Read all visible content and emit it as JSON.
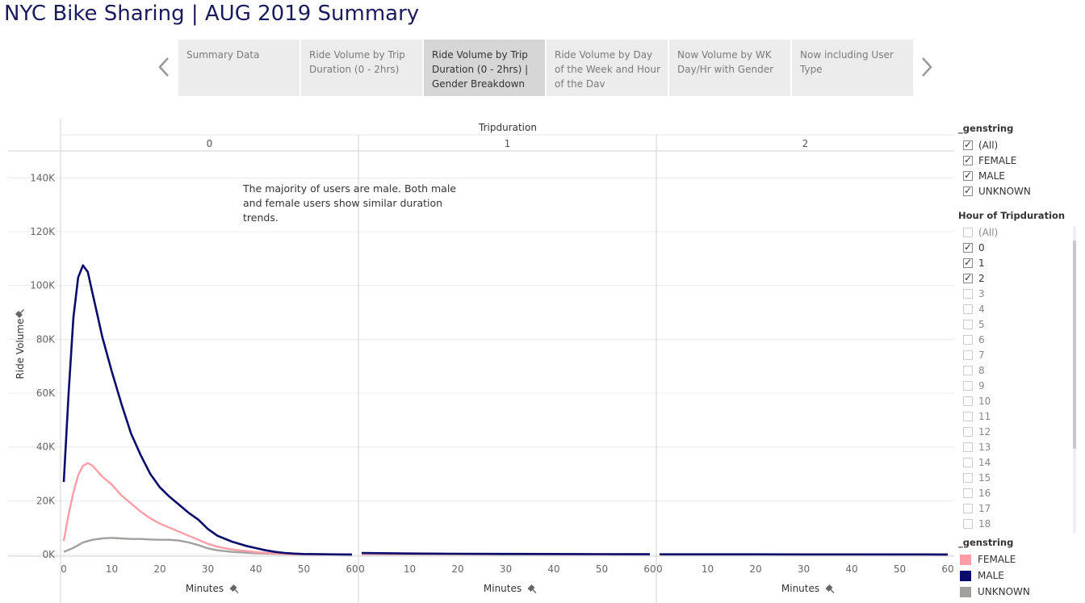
{
  "title": "NYC Bike Sharing | AUG 2019 Summary",
  "tabs": [
    {
      "label": "Summary Data",
      "active": false
    },
    {
      "label": "Ride Volume by Trip Duration (0 - 2hrs)",
      "active": false
    },
    {
      "label": "Ride Volume by Trip Duration (0 - 2hrs) | Gender Breakdown",
      "active": true
    },
    {
      "label": "Ride Volume by Day of the Week and Hour of the Dav",
      "active": false
    },
    {
      "label": "Now Volume by WK Day/Hr with Gender",
      "active": false
    },
    {
      "label": "Now including User Type",
      "active": false
    }
  ],
  "icons": {
    "prev": "chevron-left-icon",
    "next": "chevron-right-icon",
    "pin": "pin-icon"
  },
  "annotation": "The majority of users are male.  Both male and female users show similar duration trends.",
  "filters": {
    "genstring": {
      "title": "_genstring",
      "items": [
        {
          "label": "(All)",
          "checked": true
        },
        {
          "label": "FEMALE",
          "checked": true
        },
        {
          "label": "MALE",
          "checked": true
        },
        {
          "label": "UNKNOWN",
          "checked": true
        }
      ]
    },
    "hour": {
      "title": "Hour of Tripduration",
      "items": [
        {
          "label": "(All)",
          "checked": false
        },
        {
          "label": "0",
          "checked": true
        },
        {
          "label": "1",
          "checked": true
        },
        {
          "label": "2",
          "checked": true
        },
        {
          "label": "3",
          "checked": false
        },
        {
          "label": "4",
          "checked": false
        },
        {
          "label": "5",
          "checked": false
        },
        {
          "label": "6",
          "checked": false
        },
        {
          "label": "7",
          "checked": false
        },
        {
          "label": "8",
          "checked": false
        },
        {
          "label": "9",
          "checked": false
        },
        {
          "label": "10",
          "checked": false
        },
        {
          "label": "11",
          "checked": false
        },
        {
          "label": "12",
          "checked": false
        },
        {
          "label": "13",
          "checked": false
        },
        {
          "label": "14",
          "checked": false
        },
        {
          "label": "15",
          "checked": false
        },
        {
          "label": "16",
          "checked": false
        },
        {
          "label": "17",
          "checked": false
        },
        {
          "label": "18",
          "checked": false
        }
      ]
    }
  },
  "legend": {
    "title": "_genstring",
    "items": [
      {
        "label": "FEMALE",
        "color": "#ff9da7"
      },
      {
        "label": "MALE",
        "color": "#0b0b6b"
      },
      {
        "label": "UNKNOWN",
        "color": "#a0a09e"
      }
    ]
  },
  "chart_data": {
    "type": "line",
    "column_header": "Tripduration",
    "panels": [
      "0",
      "1",
      "2"
    ],
    "xlabel": "Minutes",
    "ylabel": "Ride Volume",
    "xlim": [
      0,
      60
    ],
    "x_ticks": [
      0,
      10,
      20,
      30,
      40,
      50,
      60
    ],
    "ylim": [
      0,
      150000
    ],
    "y_ticks": [
      0,
      20000,
      40000,
      60000,
      80000,
      100000,
      120000,
      140000
    ],
    "y_tick_labels": [
      "0K",
      "20K",
      "40K",
      "60K",
      "80K",
      "100K",
      "120K",
      "140K"
    ],
    "grid": true,
    "legend_position": "right",
    "series": [
      {
        "name": "MALE",
        "color": "#0b0b6b",
        "panel0": {
          "x": [
            0,
            1,
            2,
            3,
            4,
            5,
            6,
            7,
            8,
            10,
            12,
            14,
            16,
            18,
            20,
            22,
            24,
            26,
            28,
            30,
            32,
            35,
            38,
            40,
            42,
            44,
            46,
            48,
            50,
            55,
            60
          ],
          "y": [
            27000,
            60000,
            88000,
            103000,
            107500,
            105000,
            97000,
            89000,
            81000,
            68000,
            56000,
            45000,
            37000,
            30000,
            25000,
            21500,
            18500,
            15500,
            13000,
            9500,
            7000,
            4800,
            3200,
            2400,
            1600,
            1000,
            600,
            350,
            220,
            90,
            40
          ]
        },
        "panel1": {
          "x": [
            0,
            10,
            20,
            30,
            40,
            50,
            60
          ],
          "y": [
            600,
            400,
            300,
            250,
            200,
            150,
            120
          ]
        },
        "panel2": {
          "x": [
            0,
            10,
            20,
            30,
            40,
            50,
            60
          ],
          "y": [
            100,
            90,
            80,
            70,
            60,
            50,
            40
          ]
        }
      },
      {
        "name": "FEMALE",
        "color": "#ff9da7",
        "panel0": {
          "x": [
            0,
            1,
            2,
            3,
            4,
            5,
            6,
            7,
            8,
            10,
            12,
            14,
            16,
            18,
            20,
            22,
            24,
            26,
            28,
            30,
            32,
            35,
            38,
            40,
            42,
            44,
            46,
            48,
            50,
            55,
            60
          ],
          "y": [
            5000,
            15000,
            23000,
            29500,
            33000,
            34000,
            33000,
            31000,
            29000,
            26000,
            22000,
            19000,
            16000,
            13500,
            11500,
            10000,
            8500,
            7000,
            5500,
            4000,
            2900,
            1900,
            1300,
            900,
            600,
            400,
            250,
            150,
            100,
            50,
            30
          ]
        },
        "panel1": {
          "x": [
            0,
            10,
            20,
            30,
            40,
            50,
            60
          ],
          "y": [
            300,
            250,
            220,
            200,
            180,
            150,
            130
          ]
        },
        "panel2": {
          "x": [
            0,
            10,
            20,
            30,
            40,
            50,
            60
          ],
          "y": [
            80,
            70,
            60,
            55,
            50,
            45,
            40
          ]
        }
      },
      {
        "name": "UNKNOWN",
        "color": "#a0a09e",
        "panel0": {
          "x": [
            0,
            2,
            4,
            6,
            8,
            10,
            12,
            14,
            16,
            18,
            20,
            22,
            24,
            26,
            28,
            30,
            32,
            35,
            38,
            40,
            42,
            44,
            46,
            48,
            50,
            55,
            60
          ],
          "y": [
            1000,
            2500,
            4500,
            5500,
            6000,
            6200,
            6000,
            5800,
            5800,
            5600,
            5500,
            5500,
            5200,
            4500,
            3500,
            2300,
            1600,
            1000,
            700,
            500,
            350,
            250,
            150,
            100,
            80,
            50,
            30
          ]
        },
        "panel1": {
          "x": [
            0,
            10,
            20,
            30,
            40,
            50,
            60
          ],
          "y": [
            100,
            90,
            80,
            70,
            60,
            50,
            40
          ]
        },
        "panel2": {
          "x": [
            0,
            10,
            20,
            30,
            40,
            50,
            60
          ],
          "y": [
            40,
            35,
            30,
            30,
            25,
            25,
            20
          ]
        }
      }
    ]
  }
}
